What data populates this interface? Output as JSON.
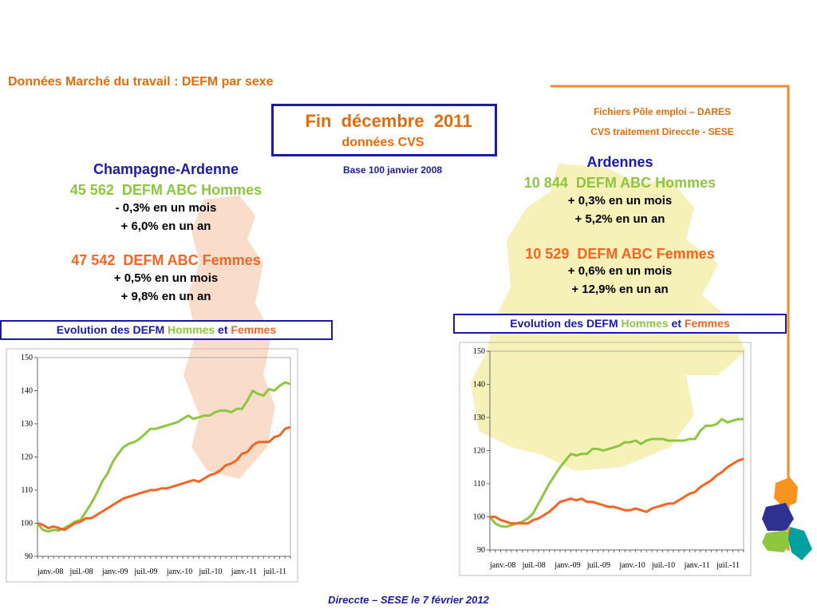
{
  "title": "Données Marché du travail : DEFM par sexe",
  "period_box": {
    "title": "Fin  décembre  2011",
    "subtitle": "données CVS"
  },
  "base_note": "Base 100 janvier 2008",
  "source": [
    "Fichiers Pôle emploi – DARES",
    "CVS traitement Direccte - SESE"
  ],
  "regions": [
    {
      "name": "Champagne-Ardenne",
      "hommes": "45 562  DEFM ABC Hommes",
      "hommes_month": "- 0,3% en un mois",
      "hommes_year": "+ 6,0% en un an",
      "femmes": "47 542  DEFM ABC Femmes",
      "femmes_month": "+ 0,5% en un mois",
      "femmes_year": "+ 9,8% en un an",
      "evolution": [
        "Evolution des DEFM",
        "Hommes",
        "et",
        "Femmes"
      ]
    },
    {
      "name": "Ardennes",
      "hommes": "10 844  DEFM ABC Hommes",
      "hommes_month": "+ 0,3% en un mois",
      "hommes_year": "+ 5,2% en un an",
      "femmes": "10 529  DEFM ABC Femmes",
      "femmes_month": "+ 0,6% en un mois",
      "femmes_year": "+ 12,9% en un an",
      "evolution": [
        "Evolution des DEFM",
        "Hommes",
        "et",
        "Femmes"
      ]
    }
  ],
  "footer": "Direccte – SESE le 7 février 2012",
  "chart_data": [
    {
      "type": "line",
      "categories": [
        "janv.-08",
        null,
        null,
        null,
        null,
        null,
        "juil.-08",
        null,
        null,
        null,
        null,
        null,
        "janv.-09",
        null,
        null,
        null,
        null,
        null,
        "juil.-09",
        null,
        null,
        null,
        null,
        null,
        "janv.-10",
        null,
        null,
        null,
        null,
        null,
        "juil.-10",
        null,
        null,
        null,
        null,
        null,
        "janv.-11",
        null,
        null,
        null,
        null,
        null,
        "juil.-11",
        null,
        null,
        null,
        null,
        null
      ],
      "series": [
        {
          "name": "Hommes",
          "color": "#8dc63f",
          "values": [
            100,
            98,
            97.5,
            98,
            97.8,
            98.5,
            99.5,
            100.5,
            101,
            103.5,
            106,
            109,
            112.5,
            115,
            118.5,
            121,
            123,
            124,
            124.5,
            125.5,
            127,
            128.5,
            128.5,
            129,
            129.5,
            130,
            130.5,
            131.5,
            132.5,
            131.5,
            132,
            132.5,
            132.5,
            133.5,
            134,
            134,
            133.5,
            134.5,
            134.5,
            137,
            140,
            139,
            138.5,
            140.5,
            140,
            141.5,
            142.5,
            142
          ]
        },
        {
          "name": "Femmes",
          "color": "#f26522",
          "values": [
            100,
            99.5,
            98.5,
            99,
            98.5,
            98,
            99,
            100,
            100.5,
            101.5,
            101.5,
            102.5,
            103.5,
            104.5,
            105.5,
            106.5,
            107.5,
            108,
            108.5,
            109,
            109.5,
            110,
            110,
            110.5,
            110.5,
            111,
            111.5,
            112,
            112.5,
            113,
            112.5,
            113.5,
            114.5,
            115,
            116,
            117.5,
            118,
            119,
            121,
            121.5,
            123.5,
            124.5,
            124.5,
            124.5,
            126,
            126.5,
            128.5,
            129
          ]
        }
      ],
      "ylim": [
        90,
        150
      ],
      "yticks": [
        90,
        100,
        110,
        120,
        130,
        140,
        150
      ]
    },
    {
      "type": "line",
      "categories": [
        "janv.-08",
        null,
        null,
        null,
        null,
        null,
        "juil.-08",
        null,
        null,
        null,
        null,
        null,
        "janv.-09",
        null,
        null,
        null,
        null,
        null,
        "juil.-09",
        null,
        null,
        null,
        null,
        null,
        "janv.-10",
        null,
        null,
        null,
        null,
        null,
        "juil.-10",
        null,
        null,
        null,
        null,
        null,
        "janv.-11",
        null,
        null,
        null,
        null,
        null,
        "juil.-11",
        null,
        null,
        null,
        null,
        null
      ],
      "series": [
        {
          "name": "Hommes",
          "color": "#8dc63f",
          "values": [
            100,
            98,
            97.2,
            97,
            97.5,
            98,
            98.5,
            99.5,
            101,
            104,
            107,
            110,
            112.5,
            115,
            117,
            119,
            118.5,
            119,
            119,
            120.5,
            120.5,
            120,
            120.5,
            121,
            121.5,
            122.5,
            122.5,
            123,
            122,
            123,
            123.5,
            123.5,
            123.5,
            123,
            123,
            123,
            123,
            123.5,
            123.5,
            126,
            127.5,
            127.5,
            128,
            129.5,
            128.5,
            129,
            129.5,
            129.5
          ]
        },
        {
          "name": "Femmes",
          "color": "#f26522",
          "values": [
            100,
            100,
            99,
            98.5,
            98,
            98,
            98,
            98,
            99,
            99.5,
            100.5,
            101.5,
            103,
            104.5,
            105,
            105.5,
            105,
            105.5,
            104.5,
            104.5,
            104,
            103.5,
            103,
            103,
            102.5,
            102,
            102,
            102.5,
            102,
            101.5,
            102.5,
            103,
            103.5,
            104,
            104,
            105,
            106,
            107,
            107.5,
            109,
            110,
            111,
            112.5,
            113.5,
            115,
            116,
            117,
            117.5
          ]
        }
      ],
      "ylim": [
        90,
        150
      ],
      "yticks": [
        90,
        100,
        110,
        120,
        130,
        140,
        150
      ]
    }
  ]
}
